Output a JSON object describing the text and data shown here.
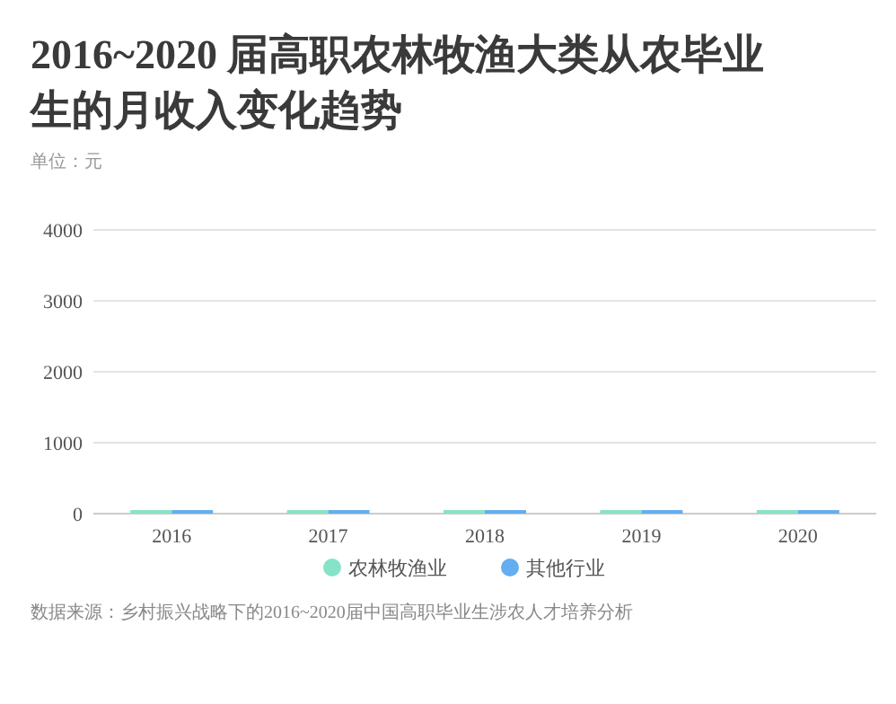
{
  "chart_data": {
    "type": "bar",
    "title": "2016~2020 届高职农林牧渔大类从农毕业生的月收入变化趋势",
    "subtitle": "单位：元",
    "categories": [
      "2016",
      "2017",
      "2018",
      "2019",
      "2020"
    ],
    "series": [
      {
        "name": "农林牧渔业",
        "color": "#86e3c8",
        "values": [
          50,
          50,
          50,
          50,
          50
        ]
      },
      {
        "name": "其他行业",
        "color": "#62aef0",
        "values": [
          50,
          50,
          50,
          50,
          50
        ]
      }
    ],
    "ylim": [
      0,
      4000
    ],
    "yticks": [
      0,
      1000,
      2000,
      3000,
      4000
    ],
    "grid": "y",
    "legend": "bottom",
    "annotations": [
      "数据来源：乡村振兴战略下的2016~2020届中国高职毕业生涉农人才培养分析"
    ]
  }
}
